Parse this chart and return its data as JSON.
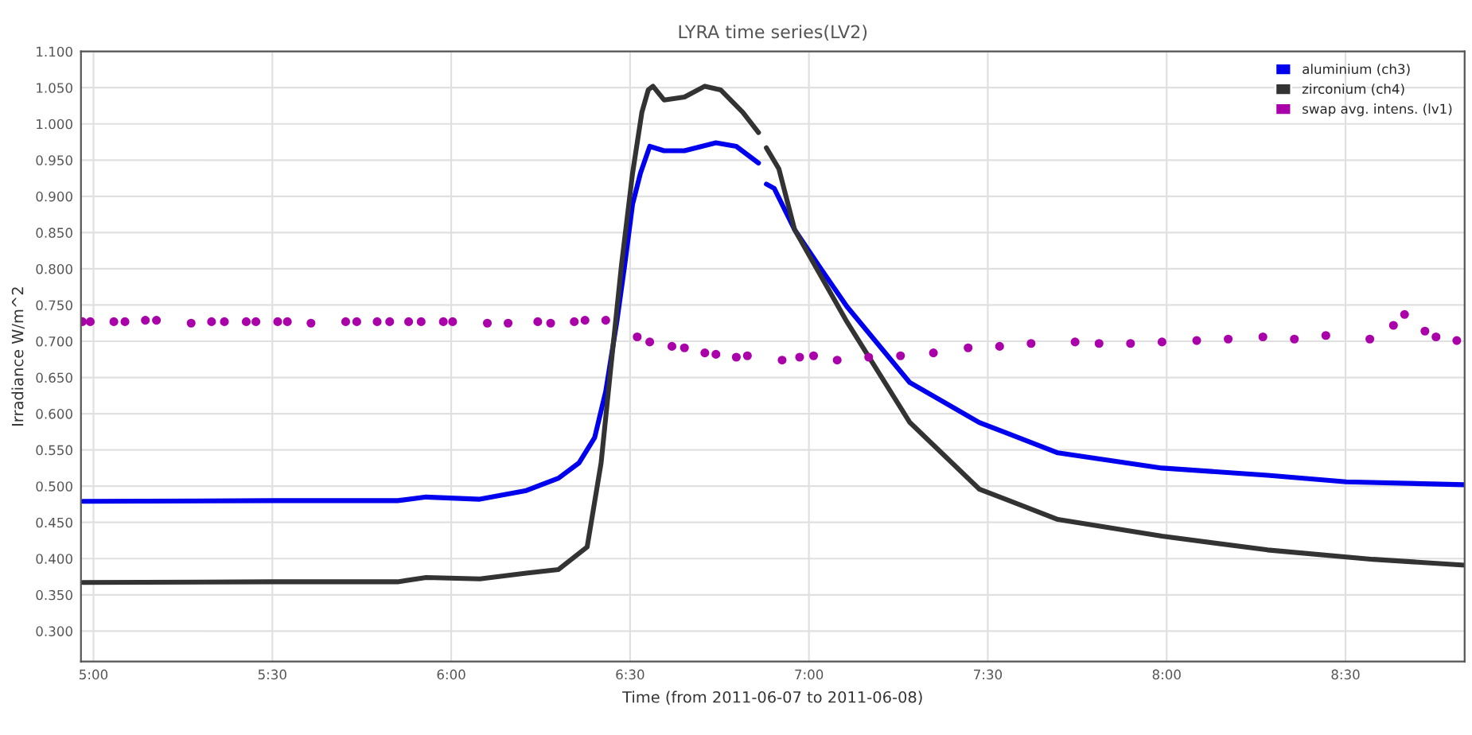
{
  "chart_data": {
    "type": "line",
    "title": "LYRA time series(LV2)",
    "xlabel": "Time (from 2011-06-07 to 2011-06-08)",
    "ylabel": "Irradiance W/m^2",
    "xlim": [
      4.965,
      8.833
    ],
    "ylim": [
      0.258,
      1.1
    ],
    "xticks": [
      {
        "value": 5,
        "label": "5:00"
      },
      {
        "value": 5.5,
        "label": "5:30"
      },
      {
        "value": 6,
        "label": "6:00"
      },
      {
        "value": 6.5,
        "label": "6:30"
      },
      {
        "value": 7,
        "label": "7:00"
      },
      {
        "value": 7.5,
        "label": "7:30"
      },
      {
        "value": 8,
        "label": "8:00"
      },
      {
        "value": 8.5,
        "label": "8:30"
      }
    ],
    "yticks": [
      {
        "value": 0.3,
        "label": "0.300"
      },
      {
        "value": 0.35,
        "label": "0.350"
      },
      {
        "value": 0.4,
        "label": "0.400"
      },
      {
        "value": 0.45,
        "label": "0.450"
      },
      {
        "value": 0.5,
        "label": "0.500"
      },
      {
        "value": 0.55,
        "label": "0.550"
      },
      {
        "value": 0.6,
        "label": "0.600"
      },
      {
        "value": 0.65,
        "label": "0.650"
      },
      {
        "value": 0.7,
        "label": "0.700"
      },
      {
        "value": 0.75,
        "label": "0.750"
      },
      {
        "value": 0.8,
        "label": "0.800"
      },
      {
        "value": 0.85,
        "label": "0.850"
      },
      {
        "value": 0.9,
        "label": "0.900"
      },
      {
        "value": 0.95,
        "label": "0.950"
      },
      {
        "value": 1.0,
        "label": "1.000"
      },
      {
        "value": 1.05,
        "label": "1.050"
      },
      {
        "value": 1.1,
        "label": "1.100"
      }
    ],
    "grid": true,
    "legend": "top right",
    "series": [
      {
        "name": "aluminium (ch3)",
        "color": "#0000ee",
        "x": [
          4.97,
          5.5,
          5.85,
          5.93,
          6.08,
          6.21,
          6.3,
          6.357,
          6.401,
          6.432,
          6.463,
          6.485,
          6.507,
          6.529,
          6.555,
          6.595,
          6.652,
          6.74,
          6.797,
          6.859,
          6.87,
          6.881,
          6.903,
          6.96,
          7.035,
          7.106,
          7.282,
          7.476,
          7.696,
          7.987,
          8.282,
          8.502,
          8.833
        ],
        "values": [
          0.479,
          0.48,
          0.48,
          0.485,
          0.482,
          0.494,
          0.511,
          0.532,
          0.567,
          0.631,
          0.727,
          0.805,
          0.889,
          0.932,
          0.969,
          0.963,
          0.963,
          0.974,
          0.969,
          0.946,
          null,
          0.917,
          0.911,
          0.854,
          0.799,
          0.748,
          0.643,
          0.588,
          0.546,
          0.525,
          0.515,
          0.506,
          0.502
        ]
      },
      {
        "name": "zirconium (ch4)",
        "color": "#333333",
        "x": [
          4.97,
          5.5,
          5.85,
          5.93,
          6.08,
          6.21,
          6.3,
          6.38,
          6.419,
          6.445,
          6.476,
          6.507,
          6.533,
          6.551,
          6.564,
          6.595,
          6.652,
          6.709,
          6.753,
          6.815,
          6.859,
          6.87,
          6.881,
          6.916,
          6.96,
          7.106,
          7.282,
          7.476,
          7.696,
          7.987,
          8.282,
          8.577,
          8.833
        ],
        "values": [
          0.367,
          0.368,
          0.368,
          0.374,
          0.372,
          0.38,
          0.385,
          0.416,
          0.532,
          0.658,
          0.805,
          0.932,
          1.016,
          1.047,
          1.052,
          1.033,
          1.037,
          1.052,
          1.047,
          1.016,
          0.988,
          null,
          0.967,
          0.938,
          0.854,
          0.727,
          0.588,
          0.496,
          0.454,
          0.431,
          0.412,
          0.399,
          0.391
        ]
      },
      {
        "name": "swap avg. intens. (lv1)",
        "type": "scatter",
        "marker": "circle",
        "color": "#aa00aa",
        "x": [
          4.969,
          4.991,
          5.057,
          5.088,
          5.145,
          5.176,
          5.273,
          5.33,
          5.366,
          5.427,
          5.454,
          5.515,
          5.542,
          5.608,
          5.705,
          5.736,
          5.793,
          5.828,
          5.881,
          5.916,
          5.978,
          6.004,
          6.101,
          6.159,
          6.242,
          6.278,
          6.344,
          6.374,
          6.432,
          6.52,
          6.555,
          6.617,
          6.652,
          6.709,
          6.74,
          6.797,
          6.828,
          6.925,
          6.974,
          7.013,
          7.079,
          7.167,
          7.256,
          7.348,
          7.445,
          7.533,
          7.621,
          7.744,
          7.811,
          7.899,
          7.987,
          8.084,
          8.172,
          8.269,
          8.357,
          8.445,
          8.568,
          8.634,
          8.665,
          8.722,
          8.753,
          8.811
        ],
        "values": [
          0.727,
          0.727,
          0.727,
          0.727,
          0.729,
          0.729,
          0.725,
          0.727,
          0.727,
          0.727,
          0.727,
          0.727,
          0.727,
          0.725,
          0.727,
          0.727,
          0.727,
          0.727,
          0.727,
          0.727,
          0.727,
          0.727,
          0.725,
          0.725,
          0.727,
          0.725,
          0.727,
          0.729,
          0.729,
          0.706,
          0.699,
          0.693,
          0.691,
          0.684,
          0.682,
          0.678,
          0.68,
          0.674,
          0.678,
          0.68,
          0.674,
          0.678,
          0.68,
          0.684,
          0.691,
          0.693,
          0.697,
          0.699,
          0.697,
          0.697,
          0.699,
          0.701,
          0.703,
          0.706,
          0.703,
          0.708,
          0.703,
          0.722,
          0.737,
          0.714,
          0.706,
          0.701
        ]
      }
    ]
  }
}
